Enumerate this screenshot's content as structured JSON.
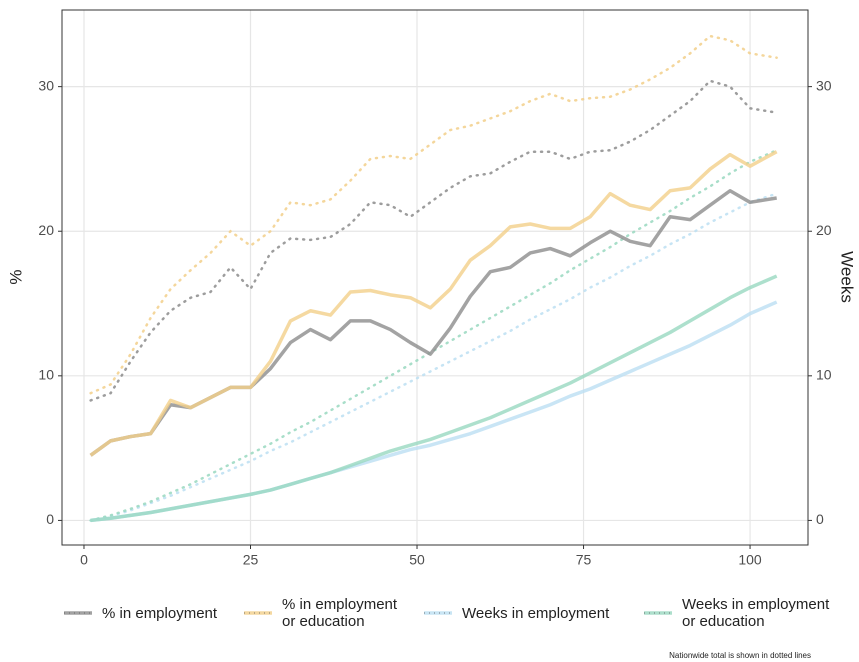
{
  "chart_data": {
    "type": "line",
    "y_label": "%",
    "y2_label": "Weeks",
    "annotation": "Nationwide total is shown in dotted lines",
    "x": [
      1,
      4,
      7,
      10,
      13,
      16,
      19,
      22,
      25,
      28,
      31,
      34,
      37,
      40,
      43,
      46,
      49,
      52,
      55,
      58,
      61,
      64,
      67,
      70,
      73,
      76,
      79,
      82,
      85,
      88,
      91,
      94,
      97,
      100,
      104
    ],
    "xlim": [
      -3.3,
      108.7
    ],
    "xticks": [
      0,
      25,
      50,
      75,
      100
    ],
    "ylim": [
      -1.7,
      35.3
    ],
    "yticks": [
      0,
      10,
      20,
      30
    ],
    "y2lim": [
      -1.7,
      35.3
    ],
    "y2ticks": [
      0,
      10,
      20,
      30
    ],
    "grid": true,
    "series": [
      {
        "name": "% in employment",
        "color": "#8c8c8c",
        "axis": "y",
        "values": [
          4.5,
          5.5,
          5.8,
          6.0,
          8.0,
          7.8,
          8.5,
          9.2,
          9.2,
          10.5,
          12.3,
          13.2,
          12.5,
          13.8,
          13.8,
          13.2,
          12.3,
          11.5,
          13.3,
          15.5,
          17.2,
          17.5,
          18.5,
          18.8,
          18.3,
          19.2,
          20.0,
          19.3,
          19.0,
          21.0,
          20.8,
          21.8,
          22.8,
          22.0,
          22.3
        ],
        "nationwide_values": [
          8.3,
          8.8,
          11.0,
          13.0,
          14.5,
          15.4,
          15.8,
          17.5,
          16.0,
          18.5,
          19.5,
          19.4,
          19.6,
          20.5,
          22.0,
          21.8,
          21.0,
          22.0,
          23.0,
          23.8,
          24.0,
          24.8,
          25.5,
          25.5,
          25.0,
          25.5,
          25.6,
          26.2,
          27.0,
          28.0,
          29.0,
          30.4,
          30.0,
          28.5,
          28.2
        ]
      },
      {
        "name": "% in employment\nor education",
        "color": "#f2cf8a",
        "axis": "y",
        "values": [
          4.5,
          5.5,
          5.8,
          6.0,
          8.3,
          7.8,
          8.5,
          9.2,
          9.2,
          11.0,
          13.8,
          14.5,
          14.2,
          15.8,
          15.9,
          15.6,
          15.4,
          14.7,
          16.0,
          18.0,
          19.0,
          20.3,
          20.5,
          20.2,
          20.2,
          21.0,
          22.6,
          21.8,
          21.5,
          22.8,
          23.0,
          24.3,
          25.3,
          24.5,
          25.5
        ],
        "nationwide_values": [
          8.8,
          9.4,
          11.5,
          14.0,
          16.0,
          17.3,
          18.5,
          20.0,
          19.0,
          20.0,
          22.0,
          21.8,
          22.2,
          23.5,
          25.0,
          25.2,
          25.0,
          26.0,
          27.0,
          27.3,
          27.8,
          28.3,
          29.0,
          29.5,
          29.0,
          29.2,
          29.3,
          29.8,
          30.5,
          31.3,
          32.3,
          33.5,
          33.2,
          32.3,
          32.0
        ]
      },
      {
        "name": "Weeks in employment",
        "color": "#bcdff2",
        "axis": "y2",
        "values": [
          0,
          0.15,
          0.35,
          0.55,
          0.8,
          1.05,
          1.3,
          1.55,
          1.8,
          2.1,
          2.5,
          2.9,
          3.3,
          3.7,
          4.1,
          4.5,
          4.9,
          5.2,
          5.6,
          6.0,
          6.5,
          7.0,
          7.5,
          8.0,
          8.6,
          9.1,
          9.7,
          10.3,
          10.9,
          11.5,
          12.1,
          12.8,
          13.5,
          14.3,
          15.1
        ],
        "nationwide_values": [
          0,
          0.3,
          0.7,
          1.2,
          1.7,
          2.3,
          2.9,
          3.5,
          4.1,
          4.8,
          5.4,
          6.1,
          6.8,
          7.5,
          8.2,
          8.9,
          9.6,
          10.3,
          11.0,
          11.7,
          12.4,
          13.1,
          13.9,
          14.6,
          15.3,
          16.1,
          16.8,
          17.6,
          18.3,
          19.1,
          19.8,
          20.6,
          21.3,
          22.0,
          22.6
        ]
      },
      {
        "name": "Weeks in employment\nor education",
        "color": "#99d8c0",
        "axis": "y2",
        "values": [
          0,
          0.15,
          0.35,
          0.55,
          0.8,
          1.05,
          1.3,
          1.55,
          1.8,
          2.1,
          2.5,
          2.9,
          3.3,
          3.8,
          4.3,
          4.8,
          5.2,
          5.6,
          6.1,
          6.6,
          7.1,
          7.7,
          8.3,
          8.9,
          9.5,
          10.2,
          10.9,
          11.6,
          12.3,
          13.0,
          13.8,
          14.6,
          15.4,
          16.1,
          16.9
        ],
        "nationwide_values": [
          0,
          0.35,
          0.8,
          1.3,
          1.9,
          2.5,
          3.2,
          3.9,
          4.6,
          5.3,
          6.1,
          6.8,
          7.6,
          8.4,
          9.2,
          10.0,
          10.8,
          11.6,
          12.4,
          13.2,
          14.0,
          14.8,
          15.6,
          16.4,
          17.3,
          18.1,
          18.9,
          19.8,
          20.6,
          21.4,
          22.3,
          23.1,
          24.0,
          24.8,
          25.6
        ]
      }
    ]
  }
}
